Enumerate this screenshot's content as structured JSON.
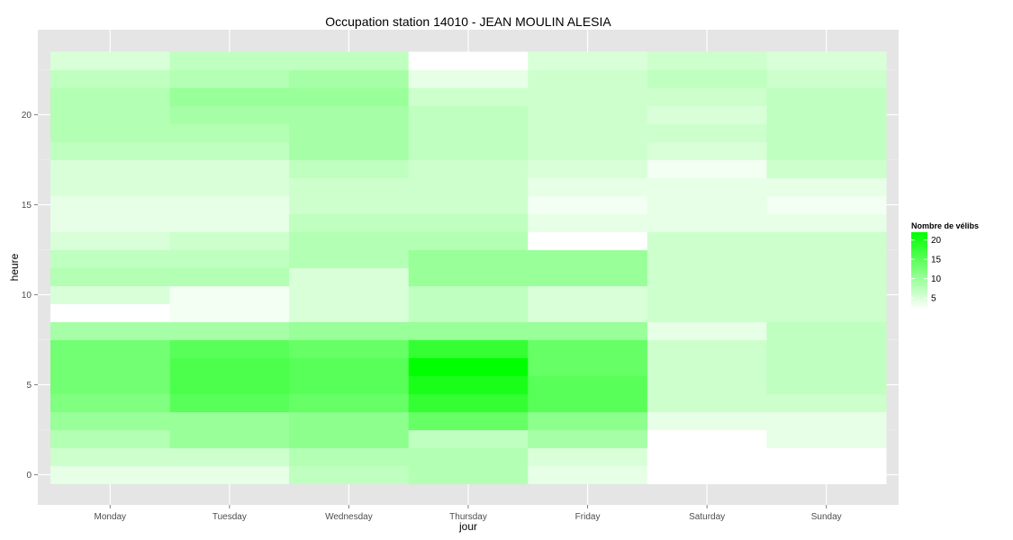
{
  "chart_data": {
    "type": "heatmap",
    "title": "Occupation station 14010 - JEAN MOULIN ALESIA",
    "xlabel": "jour",
    "ylabel": "heure",
    "x_categories": [
      "Monday",
      "Tuesday",
      "Wednesday",
      "Thursday",
      "Friday",
      "Saturday",
      "Sunday"
    ],
    "y_range": [
      -0.5,
      23.5
    ],
    "y_ticks": [
      0,
      5,
      10,
      15,
      20
    ],
    "grid": true,
    "legend": {
      "title": "Nombre de vélibs",
      "ticks": [
        5,
        10,
        15,
        20
      ],
      "range": [
        2,
        22
      ],
      "low_color": "#ffffff",
      "high_color": "#00ff00",
      "placement": "right"
    },
    "hours": [
      0,
      1,
      2,
      3,
      4,
      5,
      6,
      7,
      8,
      9,
      10,
      11,
      12,
      13,
      14,
      15,
      16,
      17,
      18,
      19,
      20,
      21,
      22,
      23
    ],
    "values": [
      [
        4,
        6,
        8,
        10,
        12,
        13,
        13,
        13,
        9,
        2,
        5,
        8,
        7,
        5,
        4,
        4,
        5,
        5,
        7,
        8,
        8,
        8,
        7,
        5
      ],
      [
        4,
        6,
        10,
        10,
        15,
        16,
        16,
        15,
        9,
        3,
        3,
        8,
        7,
        6,
        4,
        4,
        5,
        5,
        7,
        8,
        9,
        10,
        8,
        7
      ],
      [
        7,
        8,
        11,
        11,
        14,
        15,
        15,
        14,
        10,
        5,
        5,
        5,
        8,
        8,
        7,
        6,
        6,
        7,
        9,
        9,
        9,
        10,
        9,
        7
      ],
      [
        8,
        8,
        7,
        14,
        18,
        20,
        22,
        18,
        10,
        7,
        7,
        10,
        10,
        8,
        7,
        6,
        6,
        6,
        7,
        7,
        7,
        6,
        4,
        2
      ],
      [
        4,
        5,
        9,
        11,
        15,
        15,
        14,
        14,
        10,
        5,
        5,
        10,
        10,
        2,
        4,
        3,
        4,
        5,
        6,
        6,
        6,
        6,
        6,
        5
      ],
      [
        2,
        2,
        2,
        4,
        6,
        6,
        6,
        6,
        4,
        6,
        6,
        6,
        6,
        6,
        4,
        4,
        4,
        3,
        5,
        6,
        5,
        6,
        7,
        6
      ],
      [
        2,
        2,
        4,
        4,
        6,
        7,
        7,
        7,
        7,
        6,
        6,
        6,
        6,
        6,
        4,
        3,
        4,
        6,
        7,
        7,
        7,
        7,
        6,
        5
      ]
    ]
  }
}
